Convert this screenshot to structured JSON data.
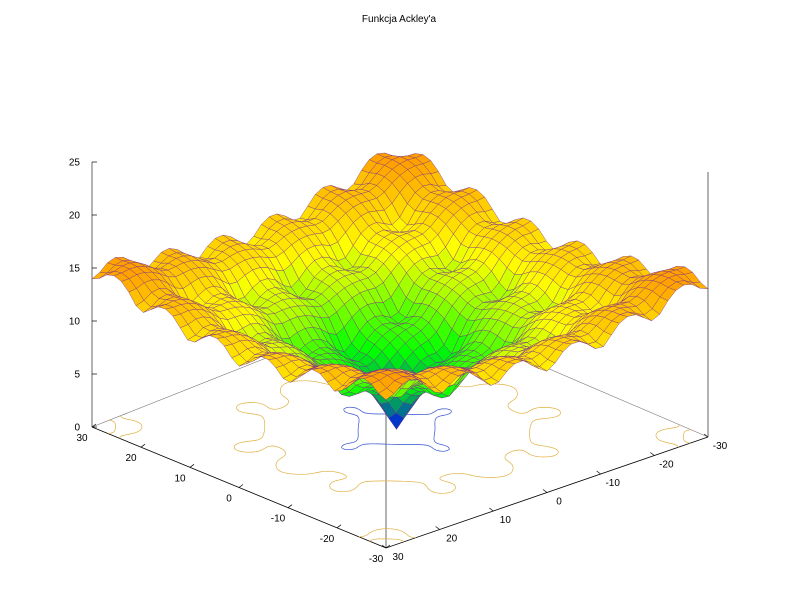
{
  "chart_data": {
    "type": "surface3d",
    "title": "Funkcja Ackley'a",
    "function": "ackley",
    "x": {
      "range": [
        -30,
        30
      ],
      "tick_labels": [
        "30",
        "20",
        "10",
        "0",
        "-10",
        "-20",
        "-30"
      ]
    },
    "y": {
      "range": [
        -30,
        30
      ],
      "tick_labels": [
        "-30",
        "-20",
        "-10",
        "0",
        "10",
        "20",
        "30"
      ]
    },
    "z": {
      "range": [
        0,
        25
      ],
      "tick_labels": [
        "0",
        "5",
        "10",
        "15",
        "20",
        "25"
      ]
    },
    "x_ticks": [
      30,
      20,
      10,
      0,
      -10,
      -20,
      -30
    ],
    "y_ticks": [
      -30,
      -20,
      -10,
      0,
      10,
      20,
      30
    ],
    "z_ticks": [
      0,
      5,
      10,
      15,
      20,
      25
    ],
    "base_contour_levels": [
      5,
      10,
      15,
      20
    ],
    "colormap": [
      "#0000ff",
      "#00ff00",
      "#ffff00",
      "#ff8000",
      "#ff0000"
    ],
    "grid": false,
    "legend": "none"
  }
}
